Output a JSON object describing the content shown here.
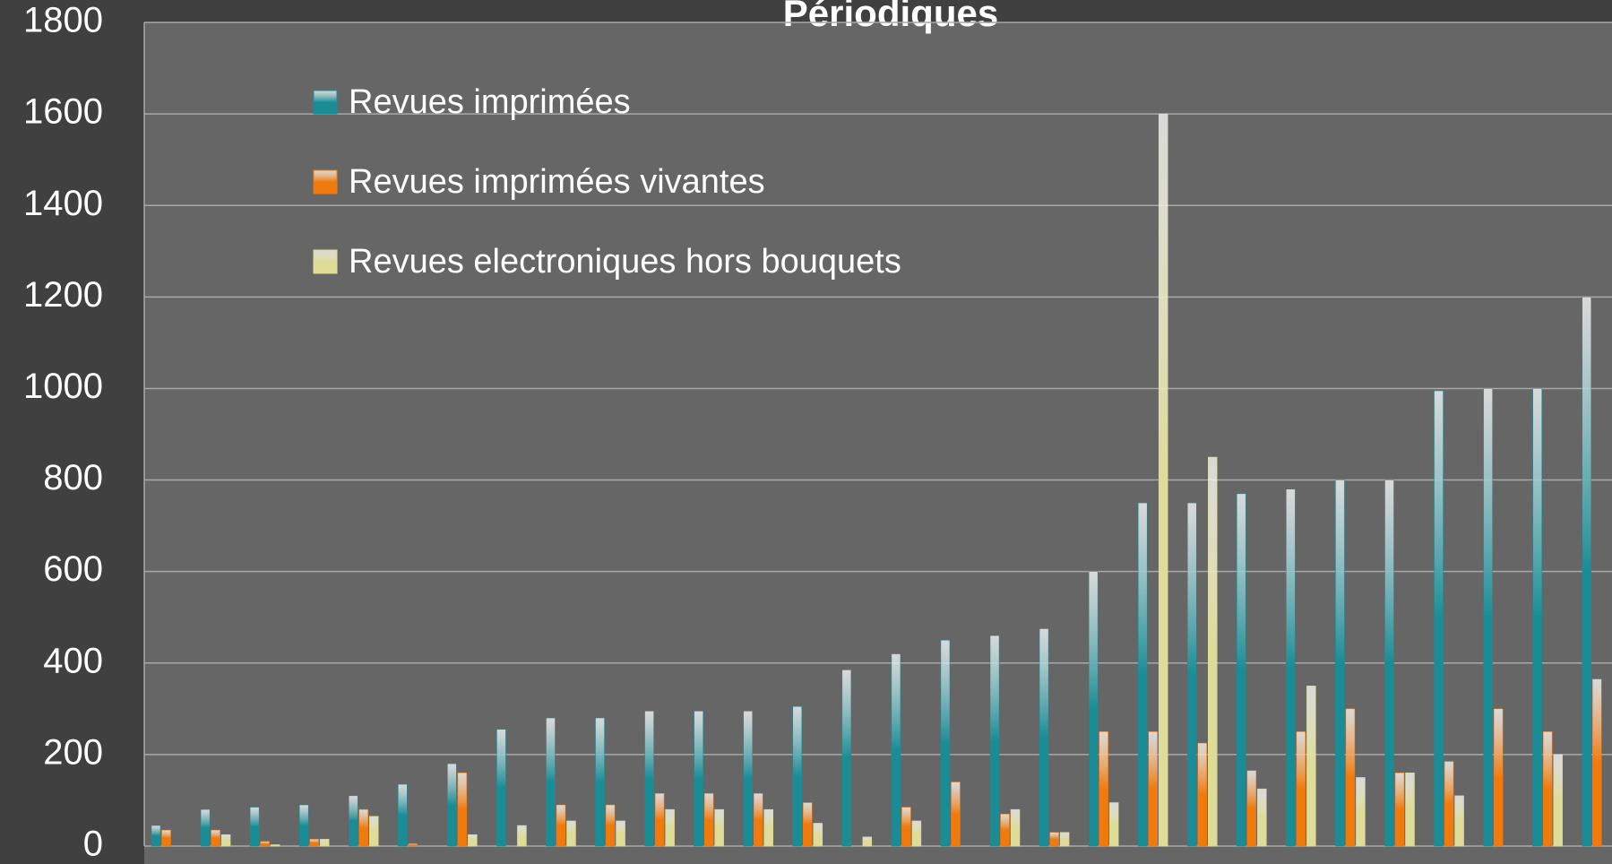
{
  "chart_data": {
    "type": "bar",
    "title": "Périodiques",
    "categories": [
      null,
      null,
      null,
      null,
      null,
      null,
      null,
      null,
      null,
      null,
      null,
      null,
      null,
      null,
      null,
      null,
      null,
      null,
      null,
      null,
      null,
      null,
      null,
      null,
      null,
      null,
      null,
      null,
      null,
      null
    ],
    "series": [
      {
        "name": "Revues imprimées",
        "color": "#1a8c96",
        "values": [
          45,
          80,
          85,
          90,
          110,
          135,
          180,
          255,
          280,
          280,
          295,
          295,
          295,
          305,
          385,
          420,
          450,
          460,
          475,
          600,
          750,
          750,
          770,
          780,
          800,
          800,
          995,
          1000,
          1000,
          1200
        ]
      },
      {
        "name": "Revues imprimées vivantes",
        "color": "#f07a0c",
        "values": [
          35,
          35,
          10,
          15,
          80,
          5,
          160,
          0,
          90,
          90,
          115,
          115,
          115,
          95,
          0,
          85,
          140,
          70,
          30,
          250,
          250,
          225,
          165,
          250,
          300,
          160,
          185,
          300,
          250,
          365
        ]
      },
      {
        "name": "Revues electroniques hors bouquets",
        "color": "#dedc96",
        "values": [
          0,
          25,
          3,
          15,
          65,
          0,
          25,
          45,
          55,
          55,
          80,
          80,
          80,
          50,
          20,
          55,
          0,
          80,
          30,
          95,
          1600,
          850,
          125,
          350,
          150,
          160,
          110,
          0,
          200,
          null
        ]
      }
    ],
    "ylim": [
      0,
      1800
    ],
    "yticks": [
      0,
      200,
      400,
      600,
      800,
      1000,
      1200,
      1400,
      1600,
      1800
    ],
    "grid": true,
    "legend": "upper left"
  }
}
